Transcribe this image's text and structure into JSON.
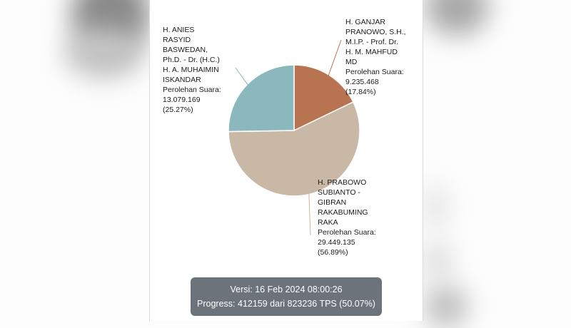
{
  "chart_data": {
    "type": "pie",
    "title": "",
    "start_angle": "top",
    "direction": "clockwise",
    "series": [
      {
        "name": "H. GANJAR PRANOWO, S.H., M.I.P. - Prof. Dr. H. M. MAHFUD MD",
        "label": "H. GANJAR\nPRANOWO, S.H.,\nM.I.P. - Prof. Dr.\nH. M. MAHFUD\nMD\nPerolehan Suara:\n9.235.468\n(17.84%)",
        "votes": 9235468,
        "votes_text": "9.235.468",
        "percent": 17.84,
        "color": "#b87350"
      },
      {
        "name": "H. PRABOWO SUBIANTO - GIBRAN RAKABUMING RAKA",
        "label": "H. PRABOWO\nSUBIANTO -\nGIBRAN\nRAKABUMING\nRAKA\nPerolehan Suara:\n29.449.135\n(56.89%)",
        "votes": 29449135,
        "votes_text": "29.449.135",
        "percent": 56.89,
        "color": "#c8b8a5"
      },
      {
        "name": "H. ANIES RASYID BASWEDAN, Ph.D. - Dr. (H.C.) H. A. MUHAIMIN ISKANDAR",
        "label": "H. ANIES\nRASYID\nBASWEDAN,\nPh.D. - Dr. (H.C.)\nH. A. MUHAIMIN\nISKANDAR\nPerolehan Suara:\n13.079.169\n(25.27%)",
        "votes": 13079169,
        "votes_text": "13.079.169",
        "percent": 25.27,
        "color": "#8ab8bc"
      }
    ],
    "legend": "none",
    "data_labels": "outside with leader lines"
  },
  "footer": {
    "version": "Versi: 16 Feb 2024 08:00:26",
    "progress": "Progress: 412159 dari 823236 TPS (50.07%)",
    "color": "#6c737b"
  }
}
